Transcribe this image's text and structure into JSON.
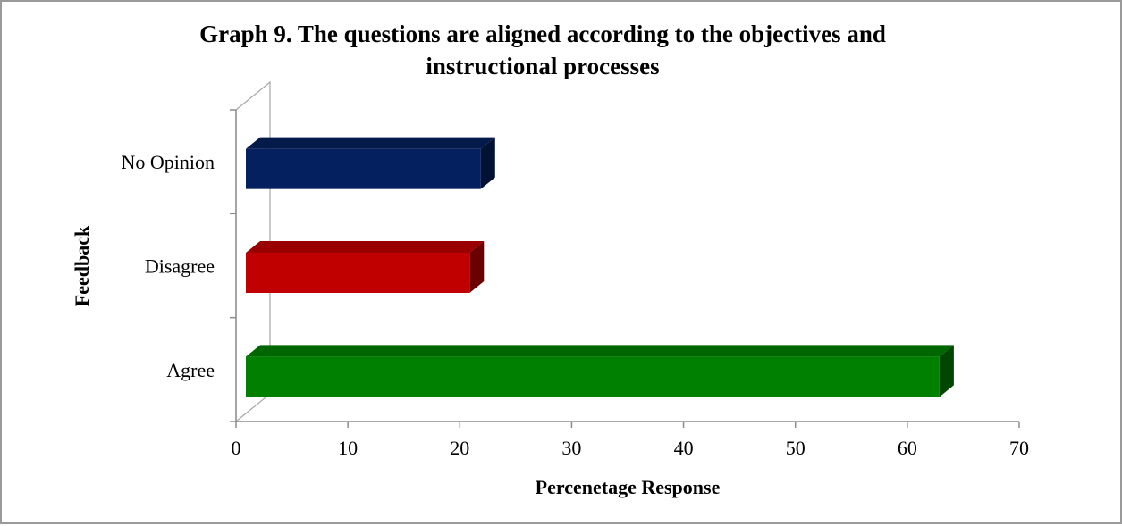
{
  "chart_data": {
    "type": "bar",
    "orientation": "horizontal",
    "style": "3d",
    "title": "Graph 9. The questions are aligned according to the objectives and instructional processes",
    "title_lines": [
      "Graph 9. The questions are aligned according to the objectives and",
      "instructional processes"
    ],
    "xlabel": "Percenetage Response",
    "ylabel": "Feedback",
    "categories": [
      "No Opinion",
      "Disagree",
      "Agree"
    ],
    "values": [
      21,
      20,
      62
    ],
    "colors": [
      "#04205e",
      "#c00000",
      "#008000"
    ],
    "xlim": [
      0,
      70
    ],
    "xticks": [
      0,
      10,
      20,
      30,
      40,
      50,
      60,
      70
    ],
    "grid": false,
    "legend": "none"
  }
}
